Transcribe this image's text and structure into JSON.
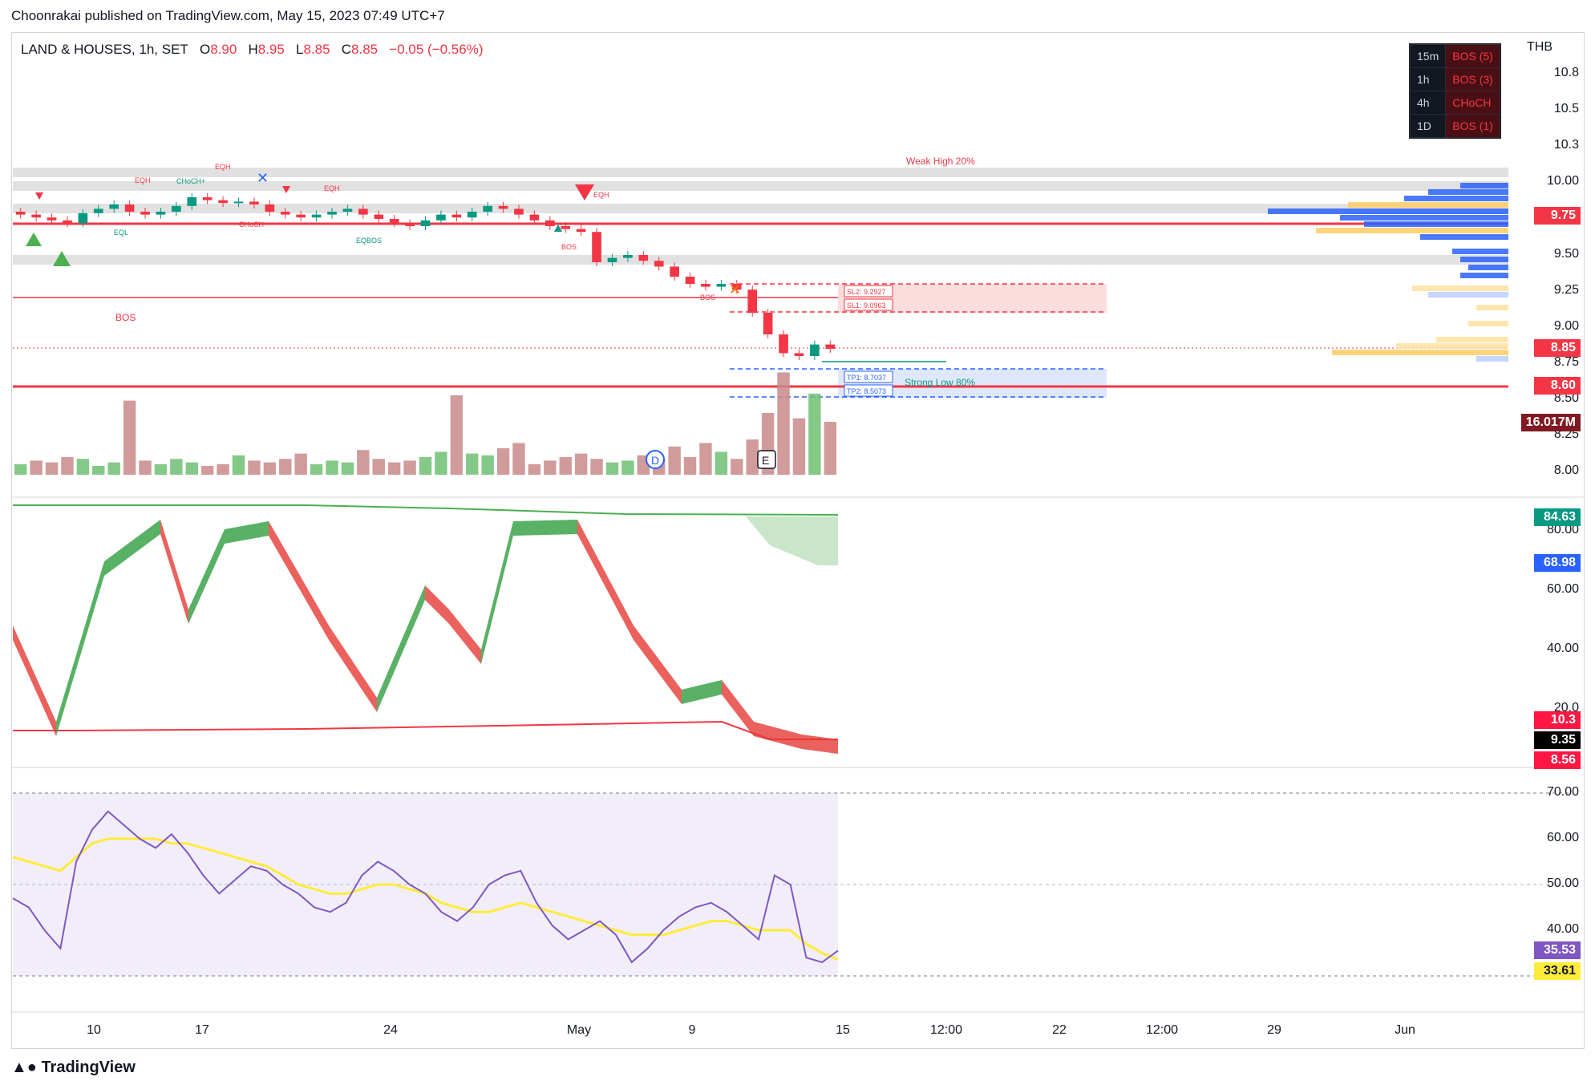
{
  "publisher": "Choonrakai published on TradingView.com, May 15, 2023 07:49 UTC+7",
  "legend": {
    "symbol": "LAND & HOUSES, 1h, SET",
    "open_label": "O",
    "open": "8.90",
    "high_label": "H",
    "high": "8.95",
    "low_label": "L",
    "low": "8.85",
    "close_label": "C",
    "close": "8.85",
    "change": "−0.05 (−0.56%)"
  },
  "currency": "THB",
  "timeframe_table": [
    {
      "tf": "15m",
      "signal": "BOS (5)"
    },
    {
      "tf": "1h",
      "signal": "BOS (3)"
    },
    {
      "tf": "4h",
      "signal": "CHoCH"
    },
    {
      "tf": "1D",
      "signal": "BOS (1)"
    }
  ],
  "price_axis": [
    "10.8",
    "10.5",
    "10.3",
    "10.00",
    "9.50",
    "9.25",
    "9.00",
    "8.75",
    "8.50",
    "8.25",
    "8.00"
  ],
  "price_tags": [
    {
      "value": "9.75",
      "color": "#f23645"
    },
    {
      "value": "8.85",
      "color": "#f23645"
    },
    {
      "value": "8.60",
      "color": "#f23645"
    },
    {
      "value": "16.017M",
      "color": "#801922"
    }
  ],
  "osc_axis": [
    "80.00",
    "60.00",
    "40.00",
    "20.0"
  ],
  "osc_tags": [
    {
      "value": "84.63",
      "color": "#089981"
    },
    {
      "value": "68.98",
      "color": "#2962ff"
    },
    {
      "value": "10.3",
      "color": "#ff1744"
    },
    {
      "value": "9.35",
      "color": "#000000"
    },
    {
      "value": "8.56",
      "color": "#ff1744"
    }
  ],
  "rsi_axis": [
    "70.00",
    "60.00",
    "50.00",
    "40.00"
  ],
  "rsi_tags": [
    {
      "value": "35.53",
      "color": "#7e57c2"
    },
    {
      "value": "33.61",
      "color": "#ffeb3b"
    }
  ],
  "time_axis": [
    "10",
    "17",
    "24",
    "May",
    "9",
    "15",
    "12:00",
    "22",
    "12:00",
    "29",
    "Jun"
  ],
  "annotations": {
    "weak_high": "Weak High 20%",
    "strong_low": "Strong Low 80%",
    "bos": "BOS",
    "bos_small": "BOS",
    "eqh": "EQH",
    "eql": "EQL",
    "choch": "CHoCH",
    "choch_plus": "CHoCH+",
    "eqbos": "EQBOS",
    "sl2": "SL2: 9.2927",
    "sl1": "SL1: 9.0963",
    "tp1": "TP1: 8.7037",
    "tp2": "TP2: 8.5073",
    "event_d": "D",
    "event_e": "E"
  },
  "branding": "TradingView",
  "chart_data": {
    "type": "candlestick",
    "symbol": "LAND & HOUSES",
    "interval": "1h",
    "ohlc_last": {
      "open": 8.9,
      "high": 8.95,
      "low": 8.85,
      "close": 8.85
    },
    "close_series": [
      9.78,
      9.76,
      9.74,
      9.72,
      9.79,
      9.82,
      9.85,
      9.8,
      9.78,
      9.8,
      9.84,
      9.9,
      9.88,
      9.86,
      9.87,
      9.85,
      9.8,
      9.78,
      9.76,
      9.78,
      9.8,
      9.82,
      9.78,
      9.75,
      9.72,
      9.7,
      9.74,
      9.78,
      9.76,
      9.8,
      9.84,
      9.82,
      9.78,
      9.74,
      9.7,
      9.68,
      9.66,
      9.45,
      9.48,
      9.5,
      9.46,
      9.42,
      9.35,
      9.3,
      9.28,
      9.3,
      9.26,
      9.1,
      8.95,
      8.82,
      8.8,
      8.88,
      8.85
    ],
    "volume_series": [
      0.6,
      0.8,
      0.7,
      1.0,
      0.9,
      0.5,
      0.7,
      4.2,
      0.8,
      0.6,
      0.9,
      0.7,
      0.5,
      0.6,
      1.1,
      0.8,
      0.7,
      0.9,
      1.2,
      0.6,
      0.8,
      0.7,
      1.4,
      0.9,
      0.7,
      0.8,
      1.0,
      1.3,
      4.5,
      1.2,
      1.1,
      1.5,
      1.8,
      0.6,
      0.8,
      1.0,
      1.2,
      0.9,
      0.7,
      0.8,
      1.1,
      0.9,
      1.6,
      1.0,
      1.8,
      1.3,
      0.9,
      2.0,
      3.5,
      5.8,
      3.2,
      4.6,
      3.0
    ],
    "levels": {
      "weak_high": 10.0,
      "red_line_upper": 9.75,
      "red_line_lower": 8.6,
      "bos_line": 9.25,
      "current": 8.85
    },
    "volume_last": "16.017M",
    "oscillator": {
      "values": [
        84.63,
        68.98,
        10.3,
        9.35,
        8.56
      ]
    },
    "rsi": {
      "rsi": [
        47,
        45,
        40,
        36,
        55,
        62,
        66,
        63,
        60,
        58,
        61,
        57,
        52,
        48,
        51,
        54,
        53,
        50,
        48,
        45,
        44,
        46,
        52,
        55,
        53,
        50,
        48,
        44,
        42,
        45,
        50,
        52,
        53,
        46,
        41,
        38,
        40,
        42,
        39,
        33,
        36,
        40,
        43,
        45,
        46,
        44,
        41,
        38,
        52,
        50,
        34,
        33,
        35.53
      ],
      "ma": [
        56,
        55,
        54,
        53,
        56,
        59,
        60,
        60,
        60,
        60,
        59,
        59,
        58,
        57,
        56,
        55,
        54,
        52,
        50,
        49,
        48,
        48,
        49,
        50,
        50,
        49,
        48,
        46,
        45,
        44,
        44,
        45,
        46,
        45,
        44,
        43,
        42,
        41,
        40,
        39,
        39,
        39,
        40,
        41,
        42,
        42,
        41,
        40,
        40,
        40,
        37,
        35,
        33.61
      ],
      "upper": 70,
      "lower": 30
    }
  }
}
